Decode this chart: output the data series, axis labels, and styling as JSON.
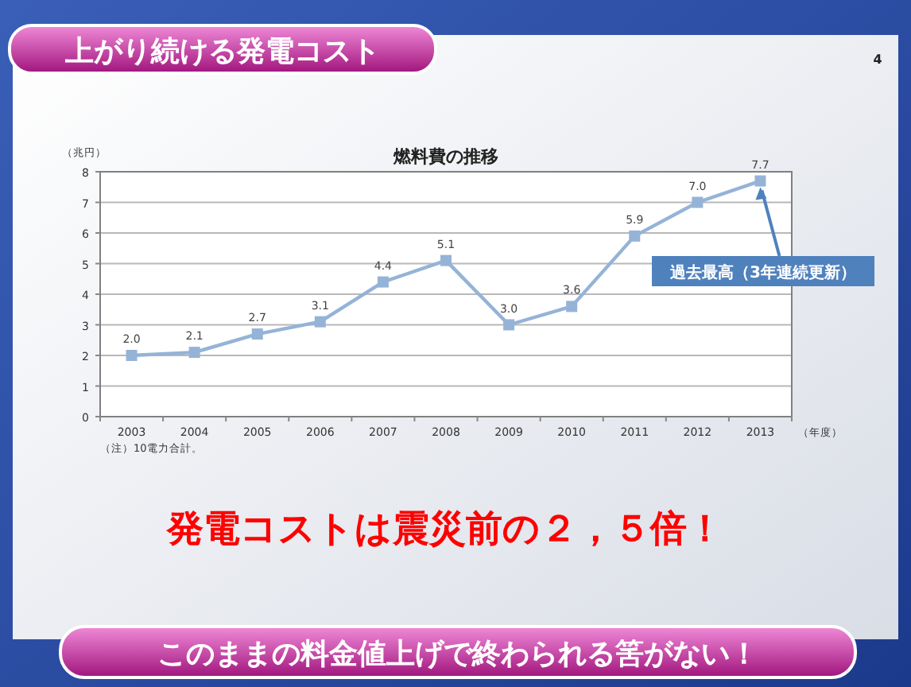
{
  "chart_data": {
    "type": "line",
    "title": "燃料費の推移",
    "ylabel": "（兆円）",
    "xlabel": "（年度）",
    "categories": [
      "2003",
      "2004",
      "2005",
      "2006",
      "2007",
      "2008",
      "2009",
      "2010",
      "2011",
      "2012",
      "2013"
    ],
    "series": [
      {
        "color": "#95b3d7",
        "values": [
          2.0,
          2.1,
          2.7,
          3.1,
          4.4,
          5.1,
          3.0,
          3.6,
          5.9,
          7.0,
          7.7
        ],
        "value_labels": [
          "2.0",
          "2.1",
          "2.7",
          "3.1",
          "4.4",
          "5.1",
          "3.0",
          "3.6",
          "5.9",
          "7.0",
          "7.7"
        ]
      }
    ],
    "ylim": [
      0,
      8
    ],
    "yticks": [
      0,
      1,
      2,
      3,
      4,
      5,
      6,
      7,
      8
    ],
    "grid": "y",
    "marker": "square",
    "line_style": "solid",
    "annotations": [
      "上がり続ける発電コスト",
      "4",
      "（注）10電力合計。",
      {
        "text": "過去最高（3年連続更新）",
        "x": "2013",
        "y": 7.7
      },
      "発電コストは震災前の２，５倍！",
      "このままの料金値上げで終わられる筈がない！"
    ]
  }
}
